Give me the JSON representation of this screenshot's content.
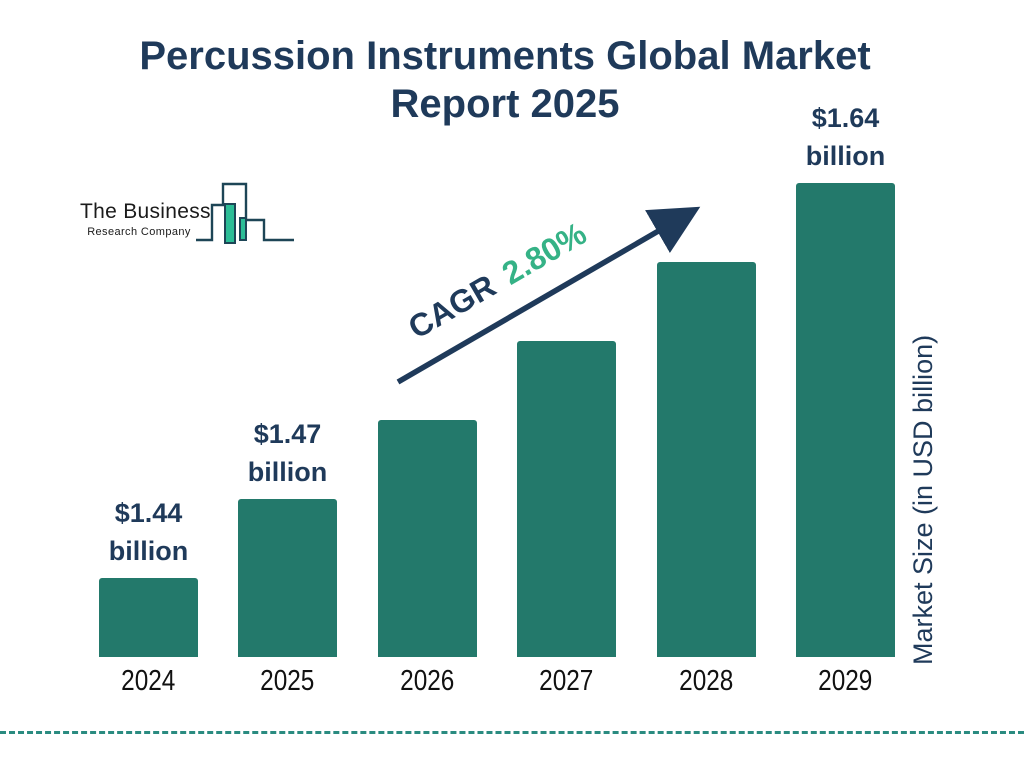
{
  "header": {
    "title_line1": "Percussion Instruments Global Market",
    "title_line2": "Report 2025"
  },
  "logo": {
    "line1": "The Business",
    "line2": "Research Company"
  },
  "chart_data": {
    "type": "bar",
    "title": "Percussion Instruments Global Market Report 2025",
    "xlabel": "",
    "ylabel": "Market Size (in USD billion)",
    "categories": [
      "2024",
      "2025",
      "2026",
      "2027",
      "2028",
      "2029"
    ],
    "series": [
      {
        "name": "Market Size (USD billion)",
        "values": [
          1.44,
          1.47,
          null,
          null,
          null,
          1.64
        ]
      }
    ],
    "value_labels": {
      "2024": [
        "$1.44",
        "billion"
      ],
      "2025": [
        "$1.47",
        "billion"
      ],
      "2029": [
        "$1.64",
        "billion"
      ]
    },
    "annotations": {
      "cagr_prefix": "CAGR",
      "cagr_value": "2.80%"
    },
    "legend": {
      "visible": false
    },
    "grid": false,
    "bar_style": "uniform-step-heights",
    "colors": {
      "bar": "#23796B",
      "navy": "#1F3A5A",
      "green": "#35B286",
      "dashed_line": "#2A8B80",
      "year_label": "#111111",
      "logo_outline": "#1D4556",
      "logo_green": "#2CBD96"
    }
  }
}
